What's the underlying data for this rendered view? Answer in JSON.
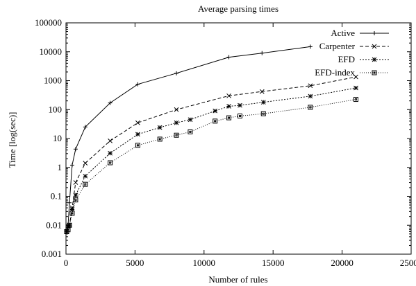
{
  "chart_data": {
    "type": "line",
    "title": "Average parsing times",
    "xlabel": "Number of rules",
    "ylabel": "Time [log(sec)]",
    "xlim": [
      0,
      25000
    ],
    "ylim": [
      0.001,
      100000
    ],
    "yscale": "log",
    "grid": false,
    "legend_position": "top-right",
    "x_ticks": [
      "0",
      "5000",
      "10000",
      "15000",
      "20000",
      "25000"
    ],
    "y_ticks": [
      "0.001",
      "0.01",
      "0.1",
      "1",
      "10",
      "100",
      "1000",
      "10000",
      "100000"
    ],
    "series": [
      {
        "name": "Active",
        "marker": "plus",
        "dash": "solid",
        "x": [
          50,
          150,
          250,
          450,
          700,
          1400,
          3200,
          5200,
          8000,
          11800,
          14200,
          17700
        ],
        "y": [
          0.006,
          0.01,
          0.06,
          1.2,
          4.3,
          25,
          170,
          750,
          1800,
          6500,
          9000,
          15000
        ]
      },
      {
        "name": "Carpenter",
        "marker": "x",
        "dash": "dashed",
        "x": [
          50,
          150,
          250,
          450,
          700,
          1400,
          3200,
          5200,
          8000,
          11800,
          14200,
          17700,
          21000
        ],
        "y": [
          0.006,
          0.009,
          0.01,
          0.04,
          0.3,
          1.4,
          8.3,
          35,
          100,
          300,
          420,
          670,
          1350
        ]
      },
      {
        "name": "EFD",
        "marker": "asterisk",
        "dash": "dotted",
        "x": [
          50,
          150,
          250,
          450,
          700,
          1400,
          3200,
          5200,
          6800,
          8000,
          9000,
          10800,
          11800,
          12600,
          14300,
          17700,
          21000
        ],
        "y": [
          0.006,
          0.009,
          0.01,
          0.035,
          0.11,
          0.5,
          3.1,
          14,
          24,
          35,
          45,
          90,
          130,
          140,
          180,
          290,
          560
        ]
      },
      {
        "name": "EFD-index",
        "marker": "square",
        "dash": "fine-dotted",
        "x": [
          50,
          150,
          250,
          450,
          700,
          1400,
          3200,
          5200,
          6800,
          8000,
          9000,
          10800,
          11800,
          12600,
          14300,
          17700,
          21000
        ],
        "y": [
          0.006,
          0.007,
          0.01,
          0.026,
          0.075,
          0.26,
          1.45,
          5.8,
          9.5,
          13,
          17,
          40,
          52,
          60,
          72,
          120,
          225
        ]
      }
    ]
  }
}
